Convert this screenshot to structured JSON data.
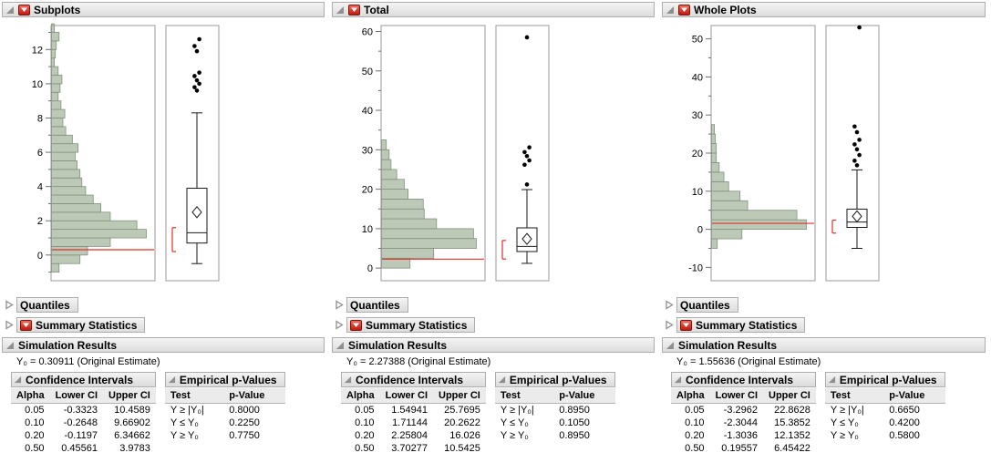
{
  "labels": {
    "quantiles": "Quantiles",
    "summary_statistics": "Summary Statistics",
    "simulation_results": "Simulation Results",
    "confidence_intervals": "Confidence Intervals",
    "empirical_p_values": "Empirical p-Values",
    "ci_headers": [
      "Alpha",
      "Lower CI",
      "Upper CI"
    ],
    "pv_headers": [
      "Test",
      "p-Value"
    ]
  },
  "colors": {
    "histogram_fill": "#bcc9b6",
    "histogram_stroke": "#82917e",
    "reference_line": "#e03128",
    "header_border": "#adadad"
  },
  "panels": [
    {
      "title": "Subplots",
      "estimate_label": "Y₀ = 0.30911 (Original Estimate)",
      "ci_rows": [
        [
          "0.05",
          "-0.3323",
          "10.4589"
        ],
        [
          "0.10",
          "-0.2648",
          "9.66902"
        ],
        [
          "0.20",
          "-0.1197",
          "6.34662"
        ],
        [
          "0.50",
          "0.45561",
          "3.9783"
        ]
      ],
      "pv_rows": [
        [
          "Y ≥ |Y₀|",
          "0.8000"
        ],
        [
          "Y ≤ Y₀",
          "0.2250"
        ],
        [
          "Y ≥ Y₀",
          "0.7750"
        ]
      ]
    },
    {
      "title": "Total",
      "estimate_label": "Y₀ = 2.27388 (Original Estimate)",
      "ci_rows": [
        [
          "0.05",
          "1.54941",
          "25.7695"
        ],
        [
          "0.10",
          "1.71144",
          "20.2622"
        ],
        [
          "0.20",
          "2.25804",
          "16.026"
        ],
        [
          "0.50",
          "3.70277",
          "10.5425"
        ]
      ],
      "pv_rows": [
        [
          "Y ≥ |Y₀|",
          "0.8950"
        ],
        [
          "Y ≤ Y₀",
          "0.1050"
        ],
        [
          "Y ≥ Y₀",
          "0.8950"
        ]
      ]
    },
    {
      "title": "Whole Plots",
      "estimate_label": "Y₀ = 1.55636 (Original Estimate)",
      "ci_rows": [
        [
          "0.05",
          "-3.2962",
          "22.8628"
        ],
        [
          "0.10",
          "-2.3044",
          "15.3852"
        ],
        [
          "0.20",
          "-1.3036",
          "12.1352"
        ],
        [
          "0.50",
          "0.19557",
          "6.45422"
        ]
      ],
      "pv_rows": [
        [
          "Y ≥ |Y₀|",
          "0.6650"
        ],
        [
          "Y ≤ Y₀",
          "0.4200"
        ],
        [
          "Y ≥ Y₀",
          "0.5800"
        ]
      ]
    }
  ],
  "chart_data": [
    {
      "type": "histogram-boxplot",
      "title": "Subplots",
      "ylim": [
        -1.5,
        13.4
      ],
      "major_ticks": [
        0,
        2,
        4,
        6,
        8,
        10,
        12
      ],
      "minor_step": 1,
      "reference_y0": 0.30911,
      "hist": {
        "bin_start": -1.0,
        "bin_width": 0.5,
        "freqs": [
          0.08,
          0.3,
          0.38,
          0.62,
          1.0,
          0.9,
          0.62,
          0.52,
          0.44,
          0.36,
          0.32,
          0.3,
          0.27,
          0.25,
          0.28,
          0.22,
          0.15,
          0.12,
          0.14,
          0.1,
          0.07,
          0.09,
          0.11,
          0.07,
          0.03,
          0.04,
          0.05,
          0.08,
          0.03
        ]
      },
      "box": {
        "whisker_low": -0.5,
        "q1": 0.7,
        "median": 1.3,
        "q3": 3.9,
        "whisker_high": 8.3,
        "mean": 2.5,
        "outliers": [
          9.6,
          9.8,
          10.0,
          10.2,
          10.45,
          10.65,
          11.9,
          12.2,
          12.6
        ],
        "ci_bracket": [
          0.2,
          1.6
        ]
      }
    },
    {
      "type": "histogram-boxplot",
      "title": "Total",
      "ylim": [
        -3.2,
        61.5
      ],
      "major_ticks": [
        0,
        10,
        20,
        30,
        40,
        50,
        60
      ],
      "minor_step": 5,
      "reference_y0": 2.27388,
      "hist": {
        "bin_start": 0,
        "bin_width": 2.5,
        "freqs": [
          0.3,
          0.55,
          1.0,
          0.97,
          0.58,
          0.45,
          0.44,
          0.28,
          0.24,
          0.16,
          0.1,
          0.08,
          0.05
        ]
      },
      "box": {
        "whisker_low": 1.2,
        "q1": 4.2,
        "median": 5.5,
        "q3": 10.2,
        "whisker_high": 19.9,
        "mean": 7.4,
        "outliers": [
          21.2,
          26.2,
          27.3,
          28.4,
          29.4,
          30.6,
          58.5
        ],
        "ci_bracket": [
          2.3,
          7.0
        ]
      }
    },
    {
      "type": "histogram-boxplot",
      "title": "Whole Plots",
      "ylim": [
        -13.5,
        53.5
      ],
      "major_ticks": [
        -10,
        0,
        10,
        20,
        30,
        40,
        50
      ],
      "minor_step": 5,
      "reference_y0": 1.55636,
      "hist": {
        "bin_start": -5,
        "bin_width": 2.5,
        "freqs": [
          0.06,
          0.32,
          1.0,
          0.9,
          0.38,
          0.3,
          0.18,
          0.13,
          0.08,
          0.05,
          0.05,
          0.04,
          0.03
        ]
      },
      "box": {
        "whisker_low": -5.0,
        "q1": 0.5,
        "median": 1.9,
        "q3": 5.3,
        "whisker_high": 15.6,
        "mean": 3.4,
        "outliers": [
          16.8,
          18.0,
          19.5,
          21.0,
          22.3,
          23.5,
          25.5,
          27.0,
          53.0
        ],
        "ci_bracket": [
          -1.0,
          2.4
        ]
      }
    }
  ]
}
